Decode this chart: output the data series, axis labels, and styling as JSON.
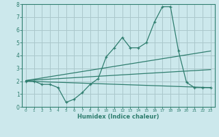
{
  "xlabel": "Humidex (Indice chaleur)",
  "bg_color": "#cce8ec",
  "grid_color": "#aac8cc",
  "line_color": "#2e7d6e",
  "xlim": [
    -0.5,
    23.5
  ],
  "ylim": [
    0,
    8
  ],
  "xticks": [
    0,
    1,
    2,
    3,
    4,
    5,
    6,
    7,
    8,
    9,
    10,
    11,
    12,
    13,
    14,
    15,
    16,
    17,
    18,
    19,
    20,
    21,
    22,
    23
  ],
  "yticks": [
    0,
    1,
    2,
    3,
    4,
    5,
    6,
    7,
    8
  ],
  "line1_x": [
    0,
    1,
    2,
    3,
    4,
    5,
    6,
    7,
    8,
    9,
    10,
    11,
    12,
    13,
    14,
    15,
    16,
    17,
    18,
    19,
    20,
    21,
    22,
    23
  ],
  "line1_y": [
    2.0,
    2.0,
    1.75,
    1.75,
    1.5,
    0.35,
    0.6,
    1.1,
    1.75,
    2.2,
    3.9,
    4.6,
    5.4,
    4.6,
    4.6,
    5.0,
    6.6,
    7.8,
    7.8,
    4.35,
    1.9,
    1.5,
    1.5,
    1.5
  ],
  "line2_x": [
    0,
    23
  ],
  "line2_y": [
    2.05,
    4.35
  ],
  "line3_x": [
    0,
    23
  ],
  "line3_y": [
    2.05,
    2.9
  ],
  "line4_x": [
    0,
    23
  ],
  "line4_y": [
    2.0,
    1.5
  ],
  "xlabel_fontsize": 6.0,
  "tick_fontsize_x": 4.2,
  "tick_fontsize_y": 5.5
}
